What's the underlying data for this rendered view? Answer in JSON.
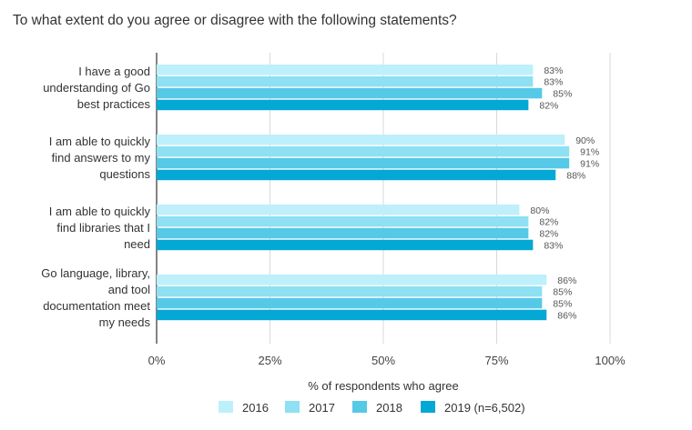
{
  "chart_data": {
    "type": "bar",
    "orientation": "horizontal",
    "title": "To what extent do you agree or disagree with the following statements?",
    "xlabel": "% of respondents who agree",
    "ylabel": "",
    "xlim": [
      0,
      100
    ],
    "x_ticks": [
      0,
      25,
      50,
      75,
      100
    ],
    "x_tick_labels": [
      "0%",
      "25%",
      "50%",
      "75%",
      "100%"
    ],
    "grid": true,
    "legend_position": "bottom",
    "categories": [
      [
        "I have a good",
        "understanding of Go",
        "best practices"
      ],
      [
        "I am able to quickly",
        "find answers to my",
        "questions"
      ],
      [
        "I am able to quickly",
        "find libraries that I",
        "need"
      ],
      [
        "Go language, library,",
        "and tool",
        "documentation meet",
        "my needs"
      ]
    ],
    "series": [
      {
        "name": "2016",
        "color": "#bdf0fa",
        "values": [
          83,
          90,
          80,
          86
        ]
      },
      {
        "name": "2017",
        "color": "#8ee0f2",
        "values": [
          83,
          91,
          82,
          85
        ]
      },
      {
        "name": "2018",
        "color": "#55c9e6",
        "values": [
          85,
          91,
          82,
          85
        ]
      },
      {
        "name": "2019 (n=6,502)",
        "color": "#03a8d4",
        "values": [
          82,
          88,
          83,
          86
        ]
      }
    ]
  }
}
